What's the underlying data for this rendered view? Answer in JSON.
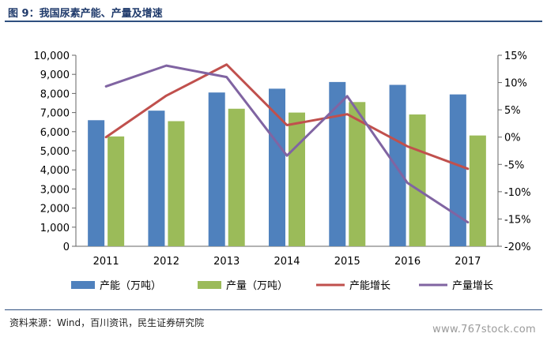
{
  "title": "图 9：我国尿素产能、产量及增速",
  "source": "资料来源：Wind，百川资讯，民生证券研究院",
  "watermark": "www.767stock.com",
  "colors": {
    "capacity": "#4f81bd",
    "output": "#9bbb59",
    "capacity_growth": "#c0504d",
    "output_growth": "#8064a2",
    "header": "#1f3a6b"
  },
  "chart_data": {
    "type": "bar",
    "categories": [
      "2011",
      "2012",
      "2013",
      "2014",
      "2015",
      "2016",
      "2017"
    ],
    "series": [
      {
        "name": "产能（万吨）",
        "type": "bar",
        "axis": "left",
        "values": [
          6600,
          7100,
          8050,
          8250,
          8600,
          8450,
          7950
        ]
      },
      {
        "name": "产量（万吨）",
        "type": "bar",
        "axis": "left",
        "values": [
          5750,
          6550,
          7200,
          7000,
          7550,
          6900,
          5800
        ]
      },
      {
        "name": "产能增长",
        "type": "line",
        "axis": "right",
        "values": [
          0.0,
          7.6,
          13.3,
          2.2,
          4.2,
          -1.7,
          -5.8
        ]
      },
      {
        "name": "产量增长",
        "type": "line",
        "axis": "right",
        "values": [
          9.3,
          13.1,
          11.0,
          -3.4,
          7.5,
          -8.4,
          -15.6
        ]
      }
    ],
    "left_axis": {
      "min": 0,
      "max": 10000,
      "ticks": [
        "0",
        "1,000",
        "2,000",
        "3,000",
        "4,000",
        "5,000",
        "6,000",
        "7,000",
        "8,000",
        "9,000",
        "10,000"
      ]
    },
    "right_axis": {
      "min": -20,
      "max": 15,
      "ticks": [
        "-20%",
        "-15%",
        "-10%",
        "-5%",
        "0%",
        "5%",
        "10%",
        "15%"
      ]
    },
    "legend_position": "bottom",
    "grid": false
  }
}
